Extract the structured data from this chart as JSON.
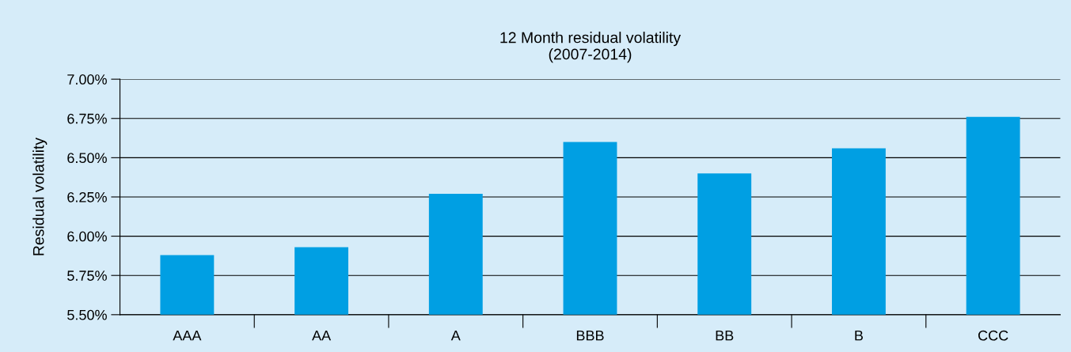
{
  "chart_data": {
    "type": "bar",
    "title": "12 Month residual volatility\n(2007-2014)",
    "ylabel": "Residual volatility",
    "categories": [
      "AAA",
      "AA",
      "A",
      "BBB",
      "BB",
      "B",
      "CCC"
    ],
    "values": [
      5.88,
      5.93,
      6.27,
      6.6,
      6.4,
      6.56,
      6.76
    ],
    "color": "#009fe3",
    "ylim": [
      5.5,
      7.0
    ],
    "yticks": [
      {
        "value": 5.5,
        "label": "5.50%"
      },
      {
        "value": 5.75,
        "label": "5.75%"
      },
      {
        "value": 6.0,
        "label": "6.00%"
      },
      {
        "value": 6.25,
        "label": "6.25%"
      },
      {
        "value": 6.5,
        "label": "6.50%"
      },
      {
        "value": 6.75,
        "label": "6.75%"
      },
      {
        "value": 7.0,
        "label": "7.00%"
      }
    ],
    "grid": "y"
  }
}
